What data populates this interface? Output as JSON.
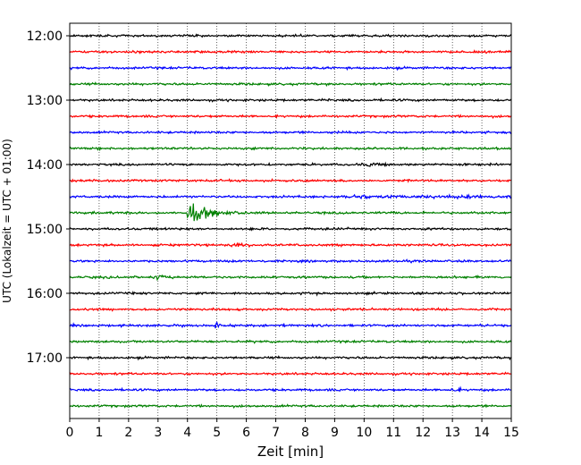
{
  "chart_data": {
    "type": "line",
    "subtype": "helicorder-seismogram",
    "xlabel": "Zeit  [min]",
    "ylabel": "UTC (Lokalzeit = UTC + 01:00)",
    "xlim": [
      0,
      15
    ],
    "x_ticks": [
      "0",
      "1",
      "2",
      "3",
      "4",
      "5",
      "6",
      "7",
      "8",
      "9",
      "10",
      "11",
      "12",
      "13",
      "14",
      "15"
    ],
    "y_tick_labels": [
      "12:00",
      "13:00",
      "14:00",
      "15:00",
      "16:00",
      "17:00"
    ],
    "y_tick_rows": [
      0,
      4,
      8,
      12,
      16,
      20
    ],
    "trace_colors": [
      "#000000",
      "#ff0000",
      "#0000ff",
      "#008000"
    ],
    "trace_row_count": 24,
    "trace_row_start_times": [
      "12:00",
      "12:15",
      "12:30",
      "12:45",
      "13:00",
      "13:15",
      "13:30",
      "13:45",
      "14:00",
      "14:15",
      "14:30",
      "14:45",
      "15:00",
      "15:15",
      "15:30",
      "15:45",
      "16:00",
      "16:15",
      "16:30",
      "16:45",
      "17:00",
      "17:15",
      "17:30",
      "17:45"
    ],
    "grid": "vertical-dotted-per-minute",
    "events": [
      {
        "row_start": "14:45",
        "minute_start": 4.0,
        "minute_end": 6.0,
        "peak_minute": 4.05,
        "description": "large burst"
      },
      {
        "row_start": "14:30",
        "minute_start": 9.3,
        "minute_end": 15.0,
        "peak_minute": 9.6,
        "description": "elevated noise"
      },
      {
        "row_start": "14:00",
        "minute_start": 9.8,
        "minute_end": 11.0,
        "peak_minute": 10.2,
        "description": "small burst"
      },
      {
        "row_start": "15:15",
        "minute_start": 5.3,
        "minute_end": 7.2,
        "peak_minute": 5.6,
        "description": "small burst"
      },
      {
        "row_start": "15:45",
        "minute_start": 2.7,
        "minute_end": 3.4,
        "peak_minute": 3.0,
        "description": "small burst"
      },
      {
        "row_start": "16:30",
        "minute_start": 7.2,
        "minute_end": 7.3,
        "peak_minute": 7.25,
        "description": "spike"
      },
      {
        "row_start": "16:30",
        "minute_start": 4.95,
        "minute_end": 5.05,
        "peak_minute": 5.0,
        "description": "spike"
      },
      {
        "row_start": "17:30",
        "minute_start": 12.8,
        "minute_end": 13.3,
        "peak_minute": 13.0,
        "description": "small burst"
      }
    ]
  }
}
